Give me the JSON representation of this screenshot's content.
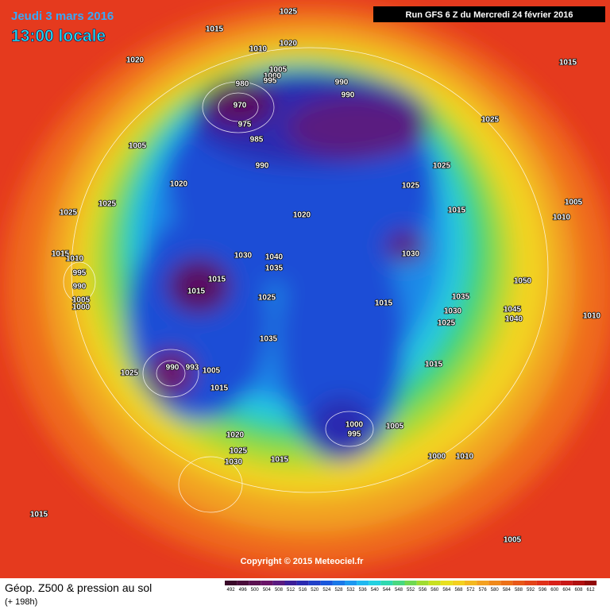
{
  "header": {
    "title": "Jeudi 3 mars 2016",
    "time": "13:00 locale",
    "run": "Run GFS 6 Z du Mercredi 24 février 2016"
  },
  "copyright": "Copyright © 2015 Meteociel.fr",
  "footer": {
    "product": "Géop. Z500 & pression au sol",
    "lead": "(+ 198h)"
  },
  "scale": {
    "labels": [
      492,
      496,
      500,
      504,
      508,
      512,
      516,
      520,
      524,
      528,
      532,
      536,
      540,
      544,
      548,
      552,
      556,
      560,
      564,
      568,
      572,
      576,
      580,
      584,
      588,
      592,
      596,
      600,
      604,
      608,
      612
    ],
    "colors": [
      "#3a0a2a",
      "#4a0d3a",
      "#5a1050",
      "#6a1468",
      "#5a1a80",
      "#3c1e98",
      "#2a2ab0",
      "#2040c8",
      "#1a58dc",
      "#1a78e8",
      "#1c98f0",
      "#20b8f0",
      "#22d0e0",
      "#30d8b0",
      "#48d880",
      "#70d850",
      "#a0dc30",
      "#c8e020",
      "#e8e020",
      "#f4d020",
      "#f4b820",
      "#f4a020",
      "#f08818",
      "#ec7018",
      "#e85818",
      "#e44418",
      "#e03018",
      "#d82018",
      "#c81818",
      "#b01010",
      "#900808"
    ]
  },
  "isobar_labels": [
    "1025",
    "1015",
    "1010",
    "1020",
    "1020",
    "1005",
    "1000",
    "995",
    "980",
    "990",
    "990",
    "970",
    "975",
    "985",
    "990",
    "1005",
    "1015",
    "1025",
    "1025",
    "1025",
    "1020",
    "1025",
    "1025",
    "1020",
    "1015",
    "1005",
    "1010",
    "1015",
    "1010",
    "995",
    "990",
    "1005",
    "1000",
    "1030",
    "1040",
    "1035",
    "1030",
    "1015",
    "1015",
    "1025",
    "1050",
    "1015",
    "1035",
    "1030",
    "1045",
    "1040",
    "1025",
    "1010",
    "1035",
    "1015",
    "1025",
    "990",
    "993",
    "1005",
    "1015",
    "1000",
    "995",
    "1005",
    "1020",
    "1025",
    "1030",
    "1015",
    "1000",
    "1010",
    "1015",
    "1005"
  ]
}
